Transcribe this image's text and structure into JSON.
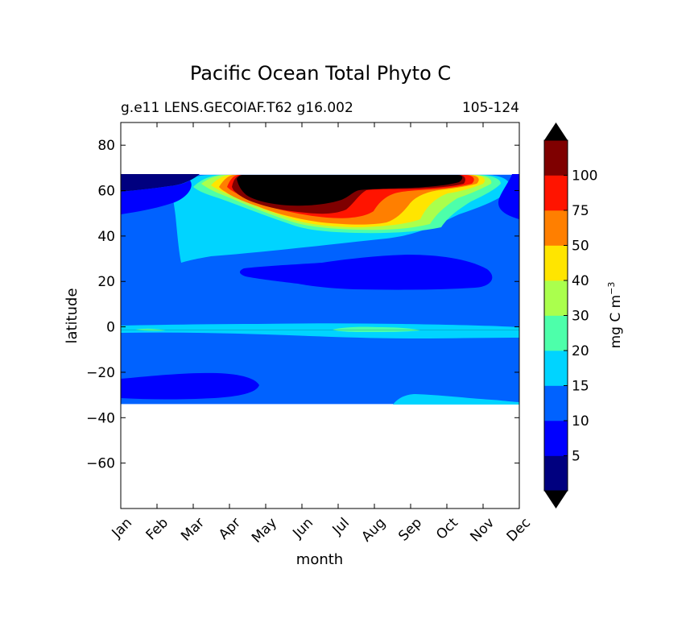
{
  "chart_data": {
    "type": "heatmap",
    "title": "Pacific Ocean Total Phyto C",
    "subtitle_left": "g.e11 LENS.GECOIAF.T62 g16.002",
    "subtitle_right": "105-124",
    "xlabel": "month",
    "ylabel": "latitude",
    "x_ticks": [
      "Jan",
      "Feb",
      "Mar",
      "Apr",
      "May",
      "Jun",
      "Jul",
      "Aug",
      "Sep",
      "Oct",
      "Nov",
      "Dec"
    ],
    "y_ticks": [
      80,
      60,
      40,
      20,
      0,
      -20,
      -40,
      -60
    ],
    "y_tick_labels": [
      "80",
      "60",
      "40",
      "20",
      "0",
      "−20",
      "−40",
      "−60"
    ],
    "ylim": [
      -80,
      90
    ],
    "data_lat_range": [
      -34,
      67
    ],
    "colorbar": {
      "label": "mg C m",
      "label_exponent": "−3",
      "levels": [
        0,
        5,
        10,
        15,
        20,
        30,
        40,
        50,
        75,
        100,
        125
      ],
      "tick_values": [
        5,
        10,
        15,
        20,
        30,
        40,
        50,
        75,
        100
      ],
      "tick_labels": [
        "5",
        "10",
        "15",
        "20",
        "30",
        "40",
        "50",
        "75",
        "100"
      ],
      "extend": "both",
      "colors": [
        "#00007f",
        "#0000ff",
        "#0062ff",
        "#00d4ff",
        "#4dffaa",
        "#aaff4d",
        "#ffe500",
        "#ff7f00",
        "#ff1400",
        "#7f0000"
      ],
      "under_color": "#000000",
      "over_color": "#000000"
    },
    "regions": [
      {
        "name": "base",
        "level_index": 2
      },
      {
        "name": "north-subpolar-light",
        "level_index": 3
      },
      {
        "name": "north-subpolar-green",
        "level_index": 4
      },
      {
        "name": "north-subpolar-yellowgreen",
        "level_index": 5
      },
      {
        "name": "north-subpolar-yellow",
        "level_index": 6
      },
      {
        "name": "north-subpolar-orange",
        "level_index": 7
      },
      {
        "name": "north-subpolar-red",
        "level_index": 8
      },
      {
        "name": "north-subpolar-darkred",
        "level_index": 9
      },
      {
        "name": "north-bloom-peak",
        "level_index": 10
      },
      {
        "name": "northwest-corner-dark",
        "level_index": 0
      },
      {
        "name": "northwest-corner-blue",
        "level_index": 1
      },
      {
        "name": "northeast-dec-blue",
        "level_index": 1
      },
      {
        "name": "subtropical-gyre-north",
        "level_index": 1
      },
      {
        "name": "equatorial-band",
        "level_index": 3
      },
      {
        "name": "equatorial-green-streak-jan",
        "level_index": 4
      },
      {
        "name": "equatorial-green-streak-aug",
        "level_index": 4
      },
      {
        "name": "subtropical-gyre-south",
        "level_index": 1
      },
      {
        "name": "south-edge-light",
        "level_index": 3
      }
    ]
  }
}
